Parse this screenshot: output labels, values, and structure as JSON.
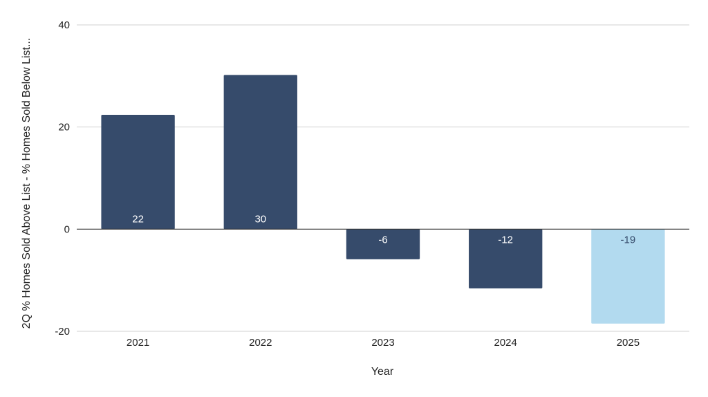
{
  "chart_data": {
    "type": "bar",
    "categories": [
      "2021",
      "2022",
      "2023",
      "2024",
      "2025"
    ],
    "values": [
      22.4,
      30.2,
      -5.9,
      -11.6,
      -18.5
    ],
    "data_labels": [
      "22",
      "30",
      "-6",
      "-12",
      "-19"
    ],
    "title": "",
    "xlabel": "Year",
    "ylabel": "2Q % Homes Sold Above List - % Homes Sold Below List...",
    "ylim": [
      -20,
      40
    ],
    "yticks": [
      -20,
      0,
      20,
      40
    ],
    "ytick_labels": [
      "-20",
      "0",
      "20",
      "40"
    ],
    "grid": true,
    "legend": "none",
    "colors": {
      "bar": "#364b6b",
      "highlight": "#b2daef",
      "label_on_bar": "#ffffff",
      "label_on_highlight": "#364b6b"
    },
    "highlight_index": 4
  }
}
